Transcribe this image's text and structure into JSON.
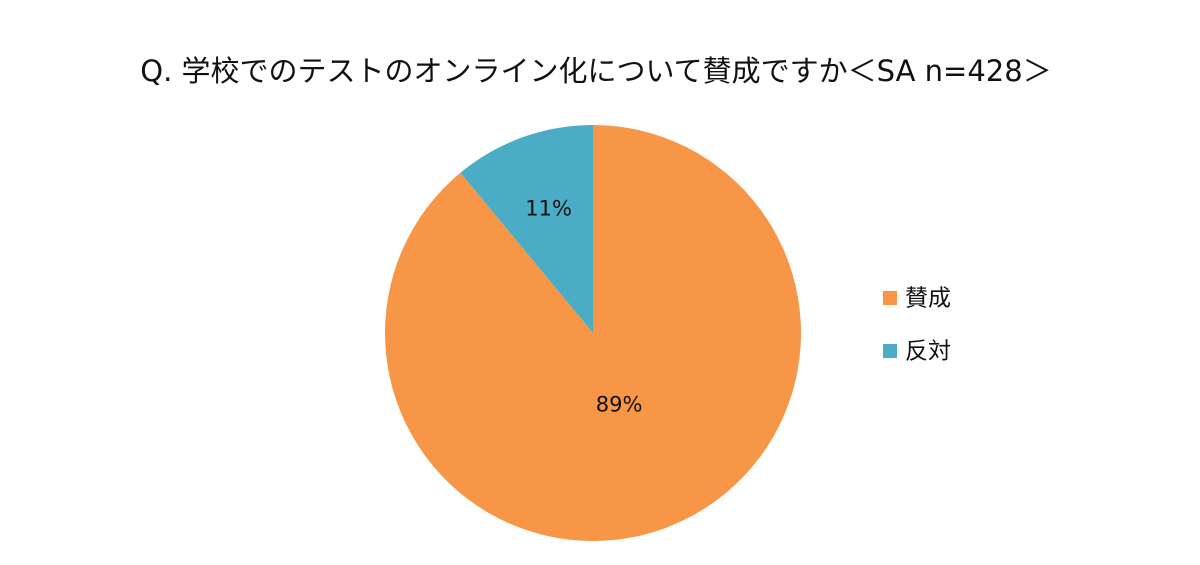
{
  "chart_data": {
    "type": "pie",
    "title": "Q. 学校でのテストのオンライン化について賛成ですか＜SA n=428＞",
    "categories": [
      "賛成",
      "反対"
    ],
    "values": [
      89,
      11
    ],
    "value_labels": [
      "89%",
      "11%"
    ],
    "colors": [
      "#f79646",
      "#4bacc6"
    ]
  }
}
